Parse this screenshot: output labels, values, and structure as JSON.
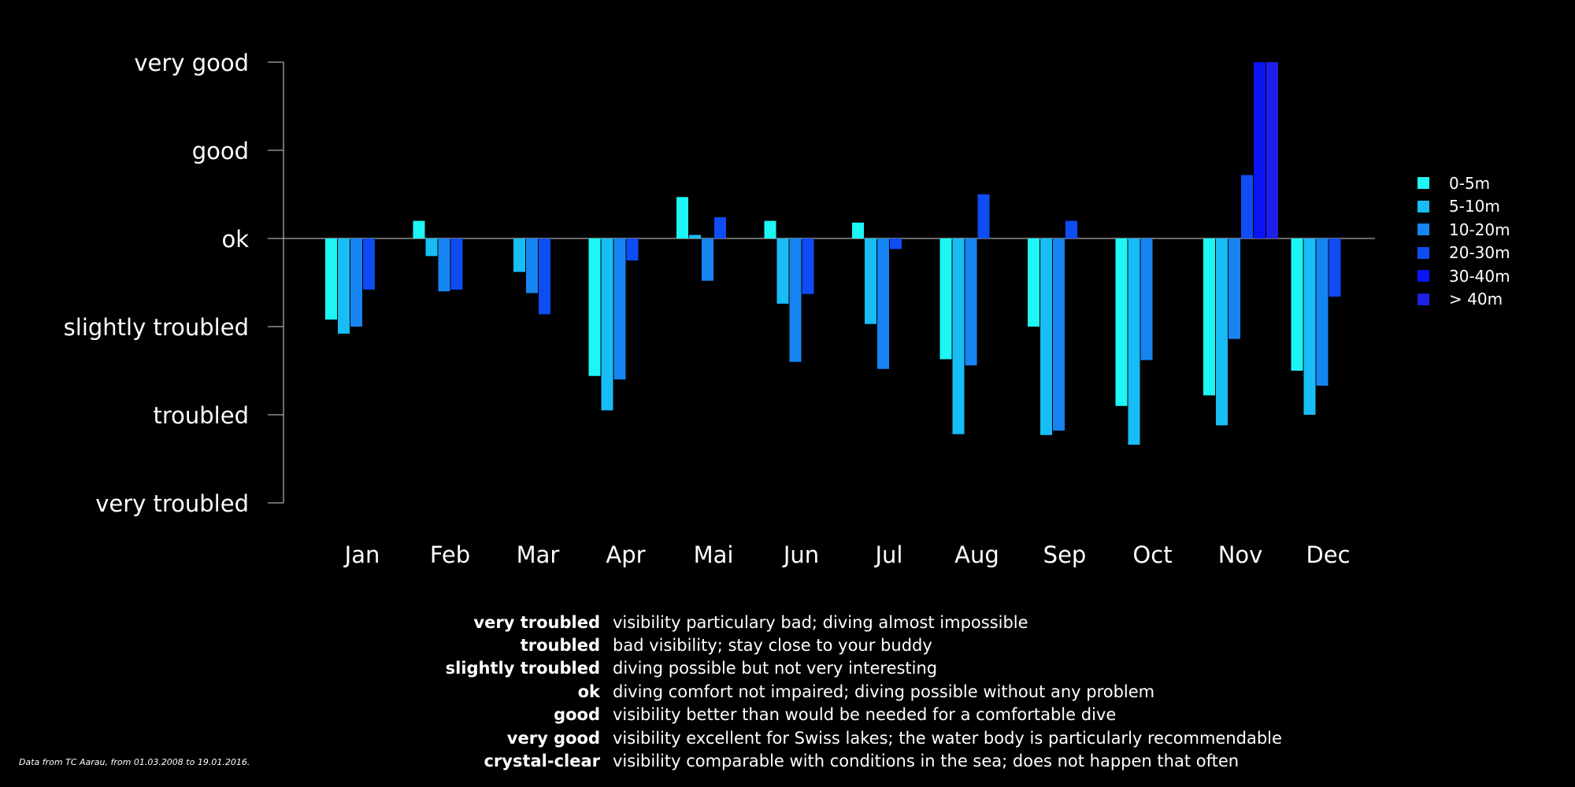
{
  "chart_data": {
    "type": "bar",
    "title": "",
    "xlabel": "",
    "ylabel": "",
    "categories": [
      "Jan",
      "Feb",
      "Mar",
      "Apr",
      "Mai",
      "Jun",
      "Jul",
      "Aug",
      "Sep",
      "Oct",
      "Nov",
      "Dec"
    ],
    "y_scale_labels": [
      "very troubled",
      "troubled",
      "slightly troubled",
      "ok",
      "good",
      "very good"
    ],
    "y_scale_values": [
      -3,
      -2,
      -1,
      0,
      1,
      2
    ],
    "ylim": [
      -3,
      2
    ],
    "grid": false,
    "legend_position": "right",
    "series": [
      {
        "name": "0-5m",
        "color": "#1ef5f5",
        "values": [
          -0.92,
          0.2,
          null,
          -1.56,
          0.47,
          0.2,
          0.18,
          -1.37,
          -1.0,
          -1.9,
          -1.78,
          -1.5
        ]
      },
      {
        "name": "5-10m",
        "color": "#18bdf5",
        "values": [
          -1.08,
          -0.2,
          -0.38,
          -1.95,
          0.04,
          -0.74,
          -0.97,
          -2.22,
          -2.23,
          -2.34,
          -2.12,
          -2.0
        ]
      },
      {
        "name": "10-20m",
        "color": "#1685f2",
        "values": [
          -1.0,
          -0.6,
          -0.62,
          -1.6,
          -0.48,
          -1.4,
          -1.48,
          -1.44,
          -2.18,
          -1.38,
          -1.14,
          -1.67
        ]
      },
      {
        "name": "20-30m",
        "color": "#0e4cf4",
        "values": [
          -0.58,
          -0.58,
          -0.86,
          -0.25,
          0.24,
          -0.63,
          -0.12,
          0.5,
          0.2,
          null,
          0.72,
          -0.66
        ]
      },
      {
        "name": "30-40m",
        "color": "#0a14f5",
        "values": [
          null,
          null,
          null,
          null,
          null,
          null,
          null,
          null,
          null,
          null,
          2.0,
          null
        ]
      },
      {
        "name": "> 40m",
        "color": "#1e20e8",
        "values": [
          null,
          null,
          null,
          null,
          null,
          null,
          null,
          null,
          null,
          null,
          2.0,
          null
        ]
      }
    ]
  },
  "notes": [
    {
      "term": "very troubled",
      "desc": "visibility particulary bad; diving almost impossible"
    },
    {
      "term": "troubled",
      "desc": "bad visibility; stay close to your buddy"
    },
    {
      "term": "slightly troubled",
      "desc": "diving possible but not very interesting"
    },
    {
      "term": "ok",
      "desc": "diving comfort not impaired; diving possible without any problem"
    },
    {
      "term": "good",
      "desc": "visibility better than would be needed for a comfortable dive"
    },
    {
      "term": "very good",
      "desc": "visibility excellent for Swiss lakes; the water body is particularly recommendable"
    },
    {
      "term": "crystal-clear",
      "desc": "visibility comparable with conditions in the sea; does not happen that often"
    }
  ],
  "source": "Data from TC Aarau, from 01.03.2008 to 19.01.2016."
}
